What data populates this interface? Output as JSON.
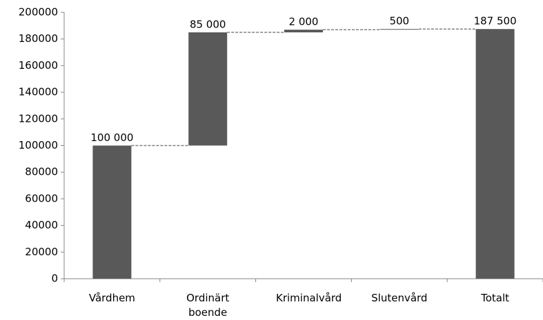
{
  "chart_data": {
    "type": "waterfall",
    "categories": [
      "Vårdhem",
      "Ordinärt boende",
      "Kriminalvård",
      "Slutenvård",
      "Totalt"
    ],
    "values": [
      100000,
      85000,
      2000,
      500,
      187500
    ],
    "value_labels": [
      "100 000",
      "85 000",
      "2 000",
      "500",
      "187 500"
    ],
    "is_total": [
      false,
      false,
      false,
      false,
      true
    ],
    "color": "#595959",
    "connector_color": "#808080",
    "ylim": [
      0,
      200000
    ],
    "yticks": [
      0,
      20000,
      40000,
      60000,
      80000,
      100000,
      120000,
      140000,
      160000,
      180000,
      200000
    ],
    "grid": false
  }
}
